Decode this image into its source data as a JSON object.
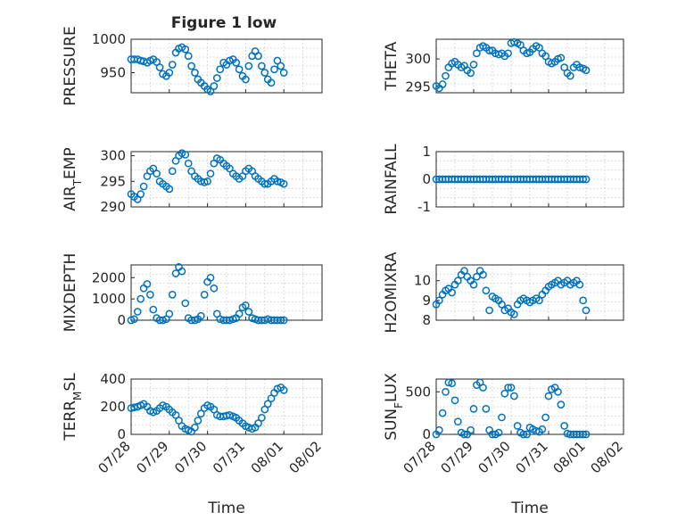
{
  "figure": {
    "title": "Figure 1 low",
    "marker_color": "#0072BD",
    "grid": true
  },
  "chart_data": [
    {
      "type": "scatter",
      "ylabel": "PRESSURE",
      "xlabel": "",
      "xlim": [
        "07/28",
        "08/02"
      ],
      "ylim": [
        920,
        1000
      ],
      "yticks": [
        "950",
        "1000"
      ],
      "x_tick_labels": [
        "07/28",
        "07/29",
        "07/30",
        "07/31",
        "08/01",
        "08/02"
      ],
      "x_days": [
        0,
        0.08,
        0.17,
        0.25,
        0.33,
        0.42,
        0.5,
        0.58,
        0.67,
        0.75,
        0.83,
        0.92,
        1,
        1.08,
        1.17,
        1.25,
        1.33,
        1.42,
        1.5,
        1.58,
        1.67,
        1.75,
        1.83,
        1.92,
        2,
        2.08,
        2.17,
        2.25,
        2.33,
        2.42,
        2.5,
        2.58,
        2.67,
        2.75,
        2.83,
        2.92,
        3,
        3.08,
        3.17,
        3.25,
        3.33,
        3.42,
        3.5,
        3.58,
        3.67,
        3.75,
        3.83,
        3.92,
        4
      ],
      "y": [
        970,
        970,
        970,
        968,
        967,
        965,
        968,
        970,
        966,
        958,
        948,
        945,
        950,
        962,
        980,
        986,
        988,
        985,
        975,
        960,
        950,
        940,
        935,
        930,
        925,
        922,
        930,
        942,
        955,
        965,
        962,
        968,
        970,
        965,
        955,
        945,
        940,
        960,
        975,
        982,
        975,
        960,
        950,
        940,
        935,
        955,
        968,
        960,
        950
      ]
    },
    {
      "type": "scatter",
      "ylabel": "THETA",
      "xlabel": "",
      "xlim": [
        "07/28",
        "08/02"
      ],
      "ylim": [
        294,
        303.5
      ],
      "yticks": [
        "295",
        "300"
      ],
      "x_tick_labels": [
        "07/28",
        "07/29",
        "07/30",
        "07/31",
        "08/01",
        "08/02"
      ],
      "x_days": [
        0,
        0.08,
        0.17,
        0.25,
        0.33,
        0.42,
        0.5,
        0.58,
        0.67,
        0.75,
        0.83,
        0.92,
        1,
        1.08,
        1.17,
        1.25,
        1.33,
        1.42,
        1.5,
        1.58,
        1.67,
        1.75,
        1.83,
        1.92,
        2,
        2.08,
        2.17,
        2.25,
        2.33,
        2.42,
        2.5,
        2.58,
        2.67,
        2.75,
        2.83,
        2.92,
        3,
        3.08,
        3.17,
        3.25,
        3.33,
        3.42,
        3.5,
        3.58,
        3.67,
        3.75,
        3.83,
        3.92,
        4
      ],
      "y": [
        295.2,
        294.8,
        295.5,
        297,
        298.5,
        299.2,
        299.5,
        299,
        298.5,
        298.8,
        298,
        297.5,
        299,
        301,
        302,
        302.3,
        302,
        301.5,
        301.5,
        301,
        300.8,
        301,
        300.5,
        301,
        302.8,
        303,
        302.8,
        302.5,
        301.5,
        301,
        301.2,
        301.8,
        302.3,
        302,
        301,
        300.5,
        299.5,
        299.2,
        299.5,
        300,
        300.2,
        298.5,
        297.5,
        297,
        298.5,
        299,
        298.5,
        298.3,
        298
      ]
    },
    {
      "type": "scatter",
      "ylabel": "AIR_TEMP",
      "xlabel": "",
      "xlim": [
        "07/28",
        "08/02"
      ],
      "ylim": [
        290,
        300.8
      ],
      "yticks": [
        "290",
        "295",
        "300"
      ],
      "x_tick_labels": [
        "07/28",
        "07/29",
        "07/30",
        "07/31",
        "08/01",
        "08/02"
      ],
      "x_days": [
        0,
        0.08,
        0.17,
        0.25,
        0.33,
        0.42,
        0.5,
        0.58,
        0.67,
        0.75,
        0.83,
        0.92,
        1,
        1.08,
        1.17,
        1.25,
        1.33,
        1.42,
        1.5,
        1.58,
        1.67,
        1.75,
        1.83,
        1.92,
        2,
        2.08,
        2.17,
        2.25,
        2.33,
        2.42,
        2.5,
        2.58,
        2.67,
        2.75,
        2.83,
        2.92,
        3,
        3.08,
        3.17,
        3.25,
        3.33,
        3.42,
        3.5,
        3.58,
        3.67,
        3.75,
        3.83,
        3.92,
        4
      ],
      "y": [
        292.5,
        292,
        291.5,
        292.5,
        294,
        296,
        297,
        297.5,
        296.5,
        295,
        294.5,
        294,
        293.5,
        297,
        299,
        300,
        300.5,
        300.2,
        298.5,
        297,
        296,
        295.5,
        295,
        294.8,
        295,
        296.5,
        298.5,
        299.5,
        299.2,
        298.5,
        298,
        297.5,
        296.5,
        296,
        295.5,
        296,
        297,
        297.5,
        297,
        296,
        295.5,
        295,
        294.5,
        294.5,
        295,
        295.5,
        295,
        294.8,
        294.5
      ]
    },
    {
      "type": "scatter",
      "ylabel": "RAINFALL",
      "xlabel": "",
      "xlim": [
        "07/28",
        "08/02"
      ],
      "ylim": [
        -1,
        1
      ],
      "yticks": [
        "-1",
        "0",
        "1"
      ],
      "x_tick_labels": [
        "07/28",
        "07/29",
        "07/30",
        "07/31",
        "08/01",
        "08/02"
      ],
      "x_days": [
        0,
        0.08,
        0.17,
        0.25,
        0.33,
        0.42,
        0.5,
        0.58,
        0.67,
        0.75,
        0.83,
        0.92,
        1,
        1.08,
        1.17,
        1.25,
        1.33,
        1.42,
        1.5,
        1.58,
        1.67,
        1.75,
        1.83,
        1.92,
        2,
        2.08,
        2.17,
        2.25,
        2.33,
        2.42,
        2.5,
        2.58,
        2.67,
        2.75,
        2.83,
        2.92,
        3,
        3.08,
        3.17,
        3.25,
        3.33,
        3.42,
        3.5,
        3.58,
        3.67,
        3.75,
        3.83,
        3.92,
        4
      ],
      "y": [
        0,
        0,
        0,
        0,
        0,
        0,
        0,
        0,
        0,
        0,
        0,
        0,
        0,
        0,
        0,
        0,
        0,
        0,
        0,
        0,
        0,
        0,
        0,
        0,
        0,
        0,
        0,
        0,
        0,
        0,
        0,
        0,
        0,
        0,
        0,
        0,
        0,
        0,
        0,
        0,
        0,
        0,
        0,
        0,
        0,
        0,
        0,
        0,
        0
      ]
    },
    {
      "type": "scatter",
      "ylabel": "MIXDEPTH",
      "xlabel": "",
      "xlim": [
        "07/28",
        "08/02"
      ],
      "ylim": [
        0,
        2600
      ],
      "yticks": [
        "0",
        "1000",
        "2000"
      ],
      "x_tick_labels": [
        "07/28",
        "07/29",
        "07/30",
        "07/31",
        "08/01",
        "08/02"
      ],
      "x_days": [
        0,
        0.08,
        0.17,
        0.25,
        0.33,
        0.42,
        0.5,
        0.58,
        0.67,
        0.75,
        0.83,
        0.92,
        1,
        1.08,
        1.17,
        1.25,
        1.33,
        1.42,
        1.5,
        1.58,
        1.67,
        1.75,
        1.83,
        1.92,
        2,
        2.08,
        2.17,
        2.25,
        2.33,
        2.42,
        2.5,
        2.58,
        2.67,
        2.75,
        2.83,
        2.92,
        3,
        3.08,
        3.17,
        3.25,
        3.33,
        3.42,
        3.5,
        3.58,
        3.67,
        3.75,
        3.83,
        3.92,
        4
      ],
      "y": [
        0,
        50,
        400,
        1000,
        1500,
        1700,
        1200,
        500,
        100,
        0,
        0,
        50,
        300,
        1200,
        2200,
        2500,
        2300,
        800,
        100,
        0,
        0,
        50,
        200,
        1200,
        1800,
        2000,
        1500,
        300,
        50,
        0,
        0,
        0,
        50,
        100,
        300,
        600,
        700,
        400,
        100,
        50,
        0,
        0,
        0,
        50,
        0,
        0,
        0,
        0,
        0
      ]
    },
    {
      "type": "scatter",
      "ylabel": "H2OMIXRA",
      "xlabel": "",
      "xlim": [
        "07/28",
        "08/02"
      ],
      "ylim": [
        8,
        10.8
      ],
      "yticks": [
        "8",
        "9",
        "10"
      ],
      "x_tick_labels": [
        "07/28",
        "07/29",
        "07/30",
        "07/31",
        "08/01",
        "08/02"
      ],
      "x_days": [
        0,
        0.08,
        0.17,
        0.25,
        0.33,
        0.42,
        0.5,
        0.58,
        0.67,
        0.75,
        0.83,
        0.92,
        1,
        1.08,
        1.17,
        1.25,
        1.33,
        1.42,
        1.5,
        1.58,
        1.67,
        1.75,
        1.83,
        1.92,
        2,
        2.08,
        2.17,
        2.25,
        2.33,
        2.42,
        2.5,
        2.58,
        2.67,
        2.75,
        2.83,
        2.92,
        3,
        3.08,
        3.17,
        3.25,
        3.33,
        3.42,
        3.5,
        3.58,
        3.67,
        3.75,
        3.83,
        3.92,
        4
      ],
      "y": [
        8.8,
        9,
        9.3,
        9.5,
        9.6,
        9.4,
        9.8,
        10,
        10.3,
        10.5,
        10.2,
        10,
        9.8,
        10.2,
        10.5,
        10.3,
        9.5,
        8.5,
        9.2,
        9.1,
        9,
        8.8,
        8.5,
        8.6,
        8.4,
        8.3,
        8.8,
        9,
        9.1,
        9,
        8.9,
        9,
        9.1,
        9,
        9.3,
        9.5,
        9.7,
        9.8,
        9.9,
        10,
        9.8,
        9.9,
        10,
        9.8,
        9.9,
        10,
        9.8,
        9,
        8.5
      ]
    },
    {
      "type": "scatter",
      "ylabel": "TERR_MSL",
      "xlabel": "Time",
      "xlim": [
        "07/28",
        "08/02"
      ],
      "ylim": [
        0,
        400
      ],
      "yticks": [
        "0",
        "200",
        "400"
      ],
      "x_tick_labels": [
        "07/28",
        "07/29",
        "07/30",
        "07/31",
        "08/01",
        "08/02"
      ],
      "x_days": [
        0,
        0.08,
        0.17,
        0.25,
        0.33,
        0.42,
        0.5,
        0.58,
        0.67,
        0.75,
        0.83,
        0.92,
        1,
        1.08,
        1.17,
        1.25,
        1.33,
        1.42,
        1.5,
        1.58,
        1.67,
        1.75,
        1.83,
        1.92,
        2,
        2.08,
        2.17,
        2.25,
        2.33,
        2.42,
        2.5,
        2.58,
        2.67,
        2.75,
        2.83,
        2.92,
        3,
        3.08,
        3.17,
        3.25,
        3.33,
        3.42,
        3.5,
        3.58,
        3.67,
        3.75,
        3.83,
        3.92,
        4
      ],
      "y": [
        190,
        195,
        200,
        210,
        220,
        200,
        170,
        160,
        170,
        190,
        210,
        200,
        180,
        160,
        140,
        100,
        60,
        40,
        30,
        20,
        50,
        100,
        150,
        190,
        210,
        200,
        180,
        140,
        130,
        130,
        135,
        140,
        130,
        120,
        100,
        80,
        60,
        50,
        40,
        50,
        80,
        120,
        180,
        220,
        260,
        300,
        330,
        340,
        320
      ]
    },
    {
      "type": "scatter",
      "ylabel": "SUN_FLUX",
      "xlabel": "Time",
      "xlim": [
        "07/28",
        "08/02"
      ],
      "ylim": [
        0,
        650
      ],
      "yticks": [
        "0",
        "500"
      ],
      "x_tick_labels": [
        "07/28",
        "07/29",
        "07/30",
        "07/31",
        "08/01",
        "08/02"
      ],
      "x_days": [
        0,
        0.08,
        0.17,
        0.25,
        0.33,
        0.42,
        0.5,
        0.58,
        0.67,
        0.75,
        0.83,
        0.92,
        1,
        1.08,
        1.17,
        1.25,
        1.33,
        1.42,
        1.5,
        1.58,
        1.67,
        1.75,
        1.83,
        1.92,
        2,
        2.08,
        2.17,
        2.25,
        2.33,
        2.42,
        2.5,
        2.58,
        2.67,
        2.75,
        2.83,
        2.92,
        3,
        3.08,
        3.17,
        3.25,
        3.33,
        3.42,
        3.5,
        3.58,
        3.67,
        3.75,
        3.83,
        3.92,
        4
      ],
      "y": [
        0,
        50,
        250,
        500,
        610,
        600,
        400,
        150,
        20,
        0,
        0,
        50,
        300,
        580,
        610,
        550,
        300,
        50,
        0,
        0,
        20,
        200,
        480,
        550,
        550,
        450,
        100,
        20,
        0,
        0,
        80,
        60,
        40,
        30,
        60,
        200,
        450,
        530,
        550,
        500,
        350,
        100,
        10,
        0,
        0,
        0,
        0,
        0,
        0
      ]
    }
  ]
}
